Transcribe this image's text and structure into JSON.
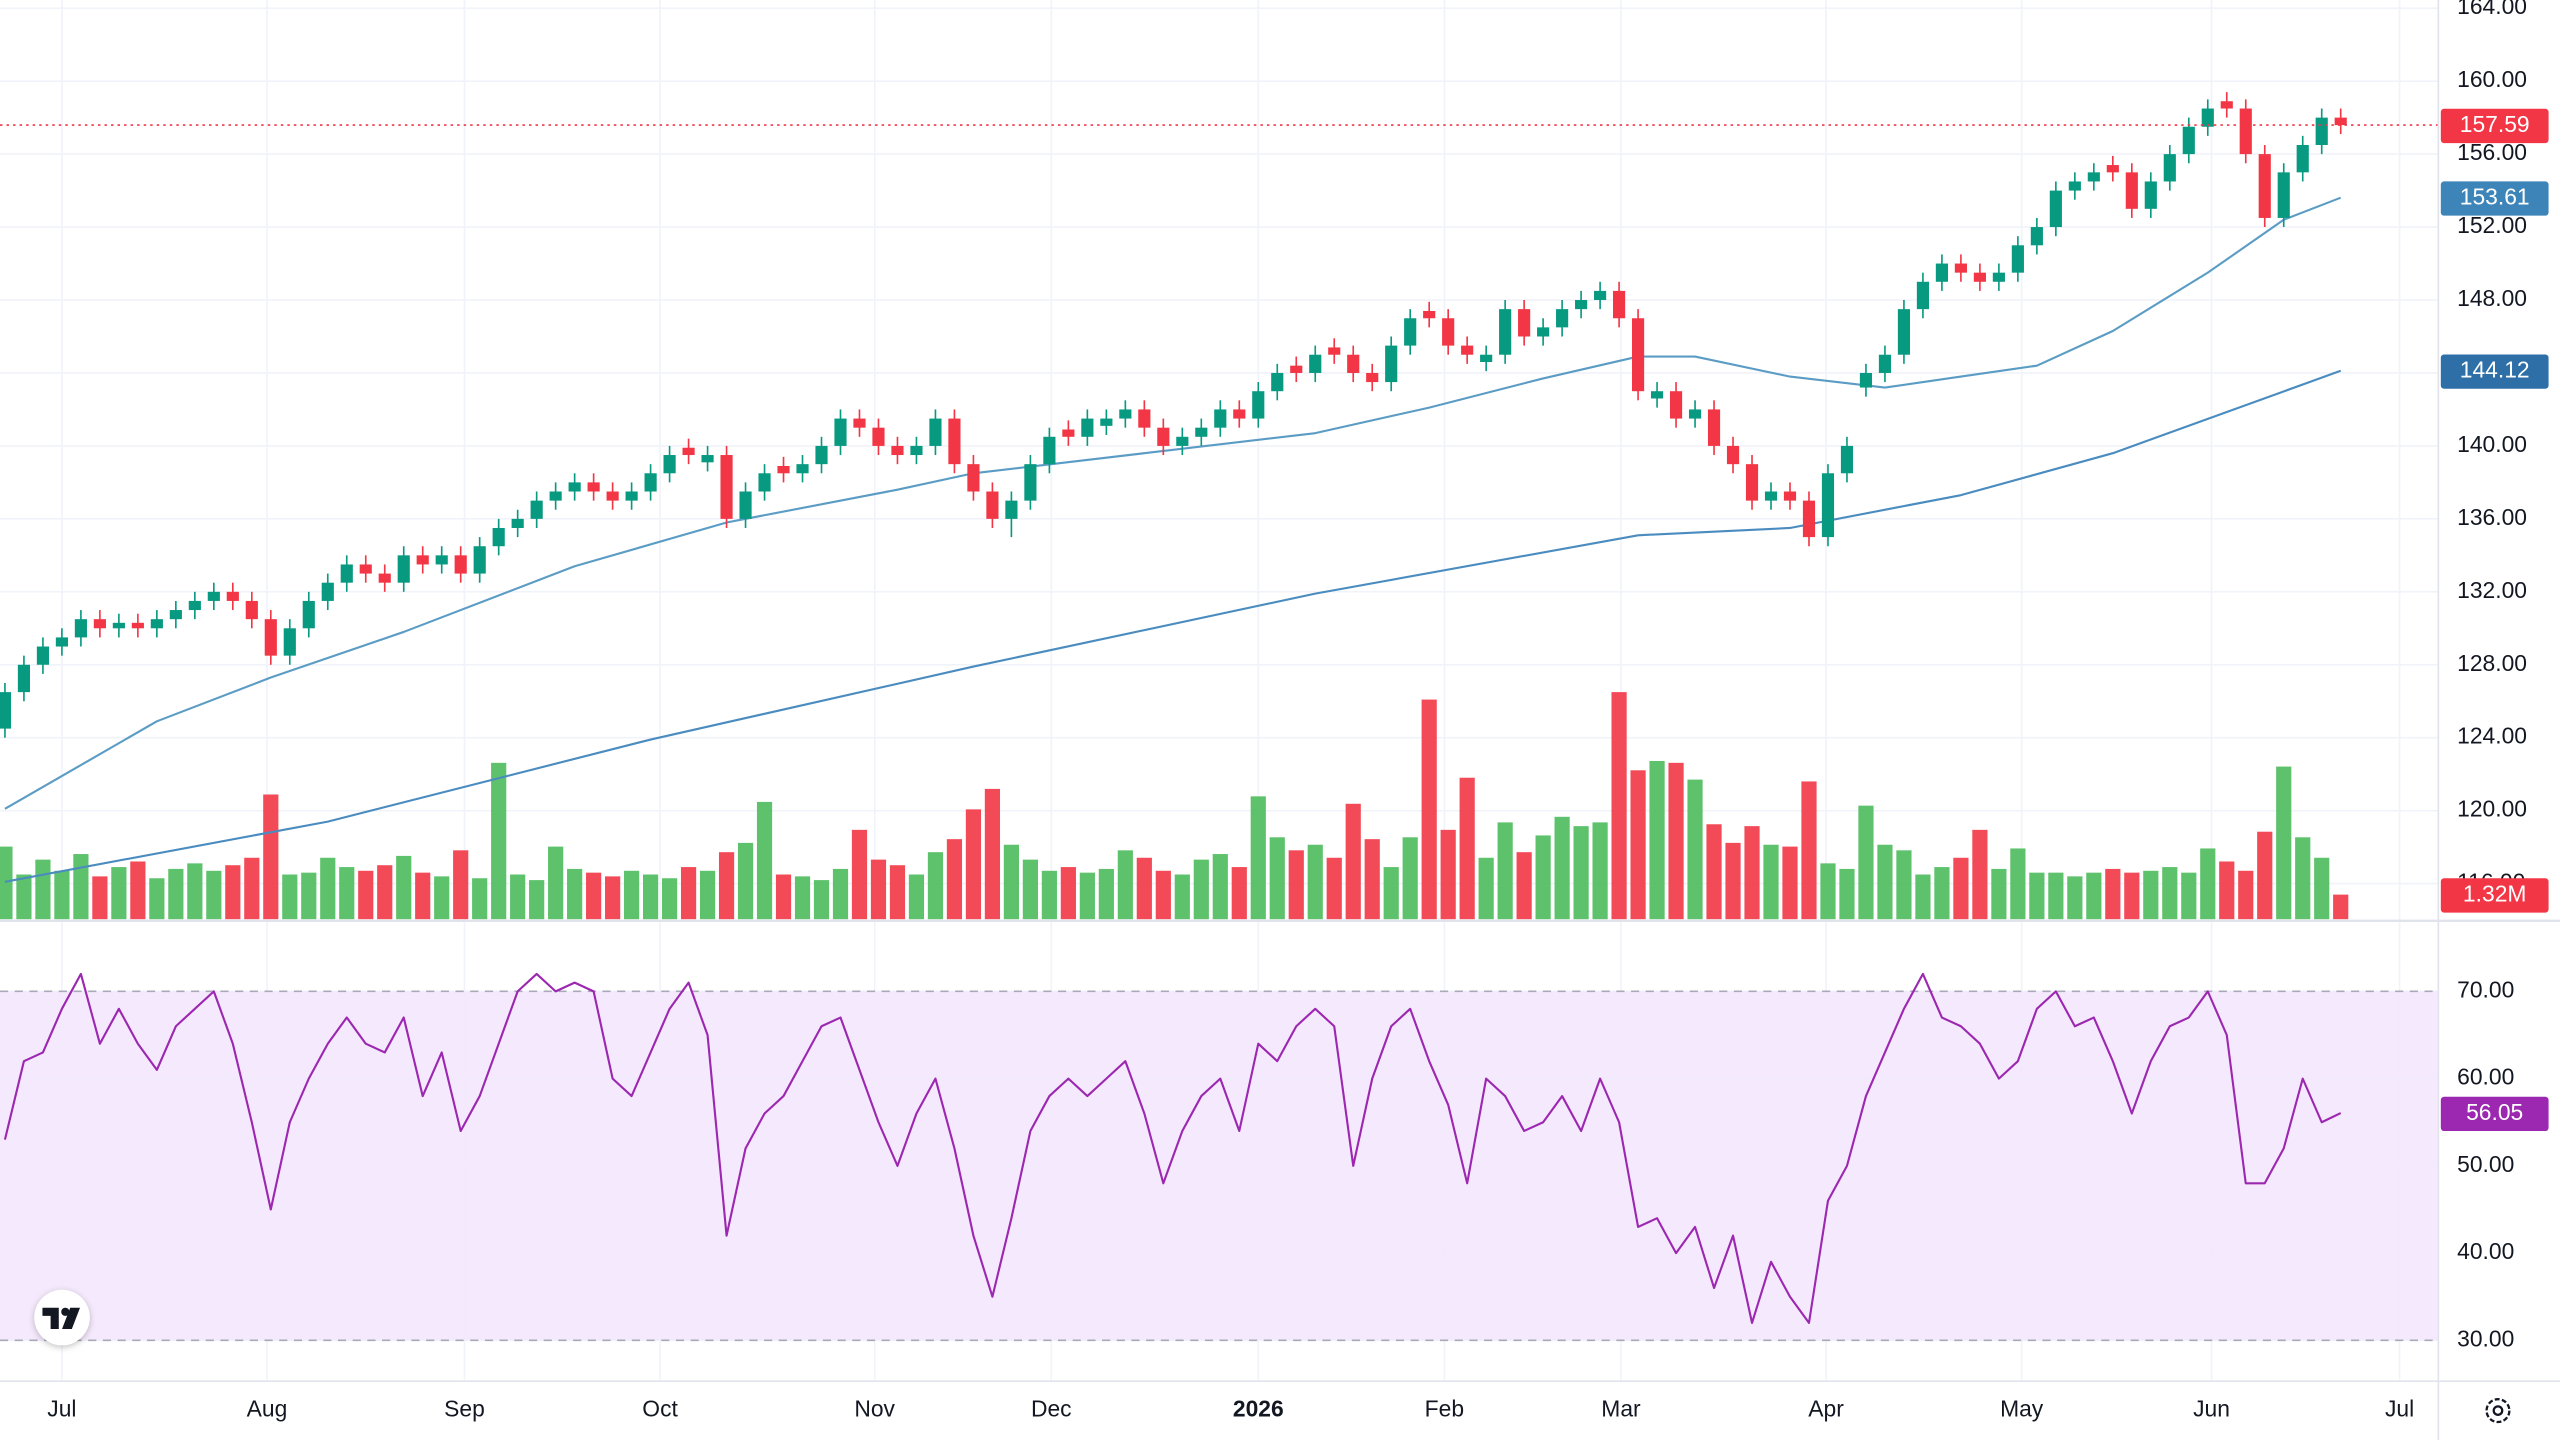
{
  "chart_data": {
    "type": "candlestick",
    "xlim": [
      -0.26,
      128.1
    ],
    "xticks": [
      {
        "value": 3.0,
        "label": "Jul"
      },
      {
        "value": 13.8,
        "label": "Aug"
      },
      {
        "value": 24.2,
        "label": "Sep"
      },
      {
        "value": 34.5,
        "label": "Oct"
      },
      {
        "value": 45.8,
        "label": "Nov"
      },
      {
        "value": 55.1,
        "label": "Dec"
      },
      {
        "value": 66.0,
        "label": "2026"
      },
      {
        "value": 75.8,
        "label": "Feb"
      },
      {
        "value": 85.1,
        "label": "Mar"
      },
      {
        "value": 95.9,
        "label": "Apr"
      },
      {
        "value": 106.2,
        "label": "May"
      },
      {
        "value": 116.2,
        "label": "Jun"
      },
      {
        "value": 126.1,
        "label": "Jul"
      }
    ],
    "ylim": [
      114.05,
      164.45
    ],
    "yticks": [
      {
        "value": 116,
        "label": "116.00"
      },
      {
        "value": 120,
        "label": "120.00"
      },
      {
        "value": 124,
        "label": "124.00"
      },
      {
        "value": 128,
        "label": "128.00"
      },
      {
        "value": 132,
        "label": "132.00"
      },
      {
        "value": 136,
        "label": "136.00"
      },
      {
        "value": 140,
        "label": "140.00"
      },
      {
        "value": 144,
        "label": "144.00"
      },
      {
        "value": 148,
        "label": "148.00"
      },
      {
        "value": 152,
        "label": "152.00"
      },
      {
        "value": 156,
        "label": "156.00"
      },
      {
        "value": 160,
        "label": "160.00"
      },
      {
        "value": 164,
        "label": "164.00"
      }
    ],
    "grid": true,
    "up_color": "#089981",
    "down_color": "#f23645",
    "open": [
      124.5,
      126.5,
      128,
      129,
      129.5,
      130.5,
      130,
      130.3,
      130,
      130.5,
      131,
      131.5,
      132,
      131.5,
      130.5,
      128.5,
      130,
      131.5,
      132.5,
      133.5,
      133,
      132.5,
      134,
      133.5,
      134,
      133,
      134.5,
      135.5,
      136,
      137,
      137.5,
      138,
      137.5,
      137,
      137.5,
      138.5,
      139.9,
      139.1,
      139.5,
      136,
      137.5,
      138.9,
      138.5,
      139,
      140,
      141.5,
      141,
      140,
      139.5,
      140,
      141.5,
      139,
      137.5,
      136,
      137,
      139,
      140.9,
      140.5,
      141.1,
      141.5,
      142,
      141,
      140,
      140.5,
      141,
      142,
      141.5,
      143,
      144.4,
      144,
      145.4,
      145,
      144,
      143.5,
      145.5,
      147.4,
      147,
      145.5,
      144.6,
      145,
      147.5,
      146,
      146.5,
      147.5,
      148,
      148.5,
      147,
      142.6,
      143,
      141.5,
      142,
      140,
      139,
      137,
      137.5,
      137,
      135,
      138.5,
      143.2,
      144,
      145,
      147.5,
      149,
      150,
      149.5,
      149,
      149.5,
      151,
      152,
      154,
      154.5,
      155.4,
      155,
      153,
      154.5,
      156,
      157.5,
      158.9,
      158.5,
      156,
      152.5,
      155,
      156.5,
      158
    ],
    "high": [
      127,
      128.5,
      129.5,
      130,
      131,
      131,
      130.8,
      130.8,
      131,
      131.5,
      132,
      132.5,
      132.5,
      132,
      131,
      130.5,
      132,
      133,
      134,
      134,
      133.5,
      134.5,
      134.5,
      134.5,
      134.5,
      135,
      136,
      136.5,
      137.5,
      138,
      138.5,
      138.5,
      138,
      138,
      139,
      140,
      140.4,
      140,
      140,
      138,
      139,
      139.4,
      139.5,
      140.5,
      142,
      142,
      141.5,
      140.5,
      140.5,
      142,
      142,
      139.5,
      138,
      137.5,
      139.5,
      141,
      141.4,
      142,
      142,
      142.5,
      142.5,
      141.5,
      141,
      141.5,
      142.5,
      142.5,
      143.5,
      144.5,
      144.9,
      145.5,
      145.9,
      145.5,
      144.5,
      146,
      147.5,
      147.9,
      147.5,
      146,
      145.5,
      148,
      148,
      147,
      148,
      148.5,
      149,
      149,
      147.5,
      143.5,
      143.5,
      142.5,
      142.5,
      140.5,
      139.5,
      138,
      138,
      137.5,
      139,
      140.5,
      144.5,
      145.5,
      148,
      149.5,
      150.5,
      150.5,
      150,
      150,
      151.5,
      152.5,
      154.5,
      155,
      155.5,
      155.9,
      155.5,
      155,
      156.5,
      158,
      159,
      159.4,
      159,
      156.5,
      155.5,
      157,
      158.5,
      158.5
    ],
    "low": [
      124,
      126,
      127.5,
      128.5,
      129,
      129.5,
      129.5,
      129.5,
      129.5,
      130,
      130.5,
      131,
      131,
      130,
      128,
      128,
      129.5,
      131,
      132,
      132.5,
      132,
      132,
      133,
      133,
      132.5,
      132.5,
      134,
      135,
      135.5,
      136.5,
      137,
      137,
      136.5,
      136.5,
      137,
      138,
      139,
      138.6,
      135.5,
      135.5,
      137,
      138,
      138,
      138.5,
      139.5,
      140.5,
      139.5,
      139,
      139,
      139.5,
      138.5,
      137,
      135.5,
      135,
      136.5,
      138.5,
      140,
      140,
      140.6,
      141,
      140.5,
      139.5,
      139.5,
      140,
      140.5,
      141,
      141,
      142.5,
      143.5,
      143.5,
      144.5,
      143.5,
      143,
      143,
      145,
      146.5,
      145,
      144.5,
      144.1,
      144.5,
      145.5,
      145.5,
      146,
      147,
      147.5,
      146.5,
      142.5,
      142.1,
      141,
      141,
      139.5,
      138.5,
      136.5,
      136.5,
      136.5,
      134.5,
      134.5,
      138,
      142.7,
      143.5,
      144.5,
      147,
      148.5,
      149,
      148.5,
      148.5,
      149,
      150.5,
      151.5,
      153.5,
      154,
      154.5,
      152.5,
      152.5,
      154,
      155.5,
      157,
      158,
      155.5,
      152,
      152,
      154.5,
      156,
      157.1
    ],
    "close": [
      126.5,
      128,
      129,
      129.5,
      130.5,
      130,
      130.3,
      130,
      130.5,
      131,
      131.5,
      132,
      131.5,
      130.5,
      128.5,
      130,
      131.5,
      132.5,
      133.5,
      133,
      132.5,
      134,
      133.5,
      134,
      133,
      134.5,
      135.5,
      136,
      137,
      137.5,
      138,
      137.5,
      137,
      137.5,
      138.5,
      139.5,
      139.5,
      139.5,
      136,
      137.5,
      138.5,
      138.5,
      139,
      140,
      141.5,
      141,
      140,
      139.5,
      140,
      141.5,
      139,
      137.5,
      136,
      137,
      139,
      140.5,
      140.5,
      141.5,
      141.5,
      142,
      141,
      140,
      140.5,
      141,
      142,
      141.5,
      143,
      144,
      144,
      145,
      145,
      144,
      143.5,
      145.5,
      147,
      147,
      145.5,
      145,
      145,
      147.5,
      146,
      146.5,
      147.5,
      148,
      148.5,
      147,
      143,
      143,
      141.5,
      142,
      140,
      139,
      137,
      137.5,
      137,
      135,
      138.5,
      140,
      144,
      145,
      147.5,
      149,
      150,
      149.5,
      149,
      149.5,
      151,
      152,
      154,
      154.5,
      155,
      155,
      153,
      154.5,
      156,
      157.5,
      158.5,
      158.5,
      156,
      152.5,
      155,
      156.5,
      158,
      157.59
    ],
    "last_price_line": true,
    "moving_averages": [
      {
        "color": "#5b9cc5",
        "x": [
          0,
          8,
          14,
          21,
          30,
          38,
          47,
          51,
          60,
          69,
          75,
          81,
          86,
          89,
          94,
          99,
          103,
          107,
          111,
          116,
          120,
          123
        ],
        "values": [
          120.1,
          124.9,
          127.3,
          129.8,
          133.4,
          135.8,
          137.6,
          138.5,
          139.6,
          140.7,
          142.1,
          143.7,
          144.9,
          144.9,
          143.8,
          143.2,
          143.8,
          144.4,
          146.3,
          149.5,
          152.4,
          153.61
        ],
        "badge_color": "#3d85b8"
      },
      {
        "color": "#4a8cbf",
        "x": [
          0,
          17,
          34,
          51,
          69,
          86,
          94,
          103,
          111,
          123
        ],
        "values": [
          116.1,
          119.4,
          123.9,
          127.9,
          131.9,
          135.1,
          135.5,
          137.3,
          139.6,
          144.12
        ],
        "badge_color": "#2e6fa8"
      }
    ],
    "volume": {
      "lim": [
        0,
        15000000
      ],
      "up_color": "#4cbb5c",
      "down_color": "#f23645",
      "values": [
        3900000,
        2400000,
        3200000,
        2600000,
        3500000,
        2300000,
        2800000,
        3100000,
        2200000,
        2700000,
        3000000,
        2600000,
        2900000,
        3300000,
        6700000,
        2400000,
        2500000,
        3300000,
        2800000,
        2600000,
        2900000,
        3400000,
        2500000,
        2300000,
        3700000,
        2200000,
        8400000,
        2400000,
        2100000,
        3900000,
        2700000,
        2500000,
        2300000,
        2600000,
        2400000,
        2200000,
        2800000,
        2600000,
        3600000,
        4100000,
        6300000,
        2400000,
        2300000,
        2100000,
        2700000,
        4800000,
        3200000,
        2900000,
        2400000,
        3600000,
        4300000,
        5900000,
        7000000,
        4000000,
        3200000,
        2600000,
        2800000,
        2500000,
        2700000,
        3700000,
        3300000,
        2600000,
        2400000,
        3200000,
        3500000,
        2800000,
        6600000,
        4400000,
        3700000,
        4000000,
        3300000,
        6200000,
        4300000,
        2800000,
        4400000,
        11800000,
        4800000,
        7600000,
        3300000,
        5200000,
        3600000,
        4500000,
        5500000,
        5000000,
        5200000,
        12200000,
        8000000,
        8500000,
        8400000,
        7500000,
        5100000,
        4100000,
        5000000,
        4000000,
        3900000,
        7400000,
        3000000,
        2700000,
        6100000,
        4000000,
        3700000,
        2400000,
        2800000,
        3300000,
        4800000,
        2700000,
        3800000,
        2500000,
        2500000,
        2300000,
        2500000,
        2700000,
        2500000,
        2600000,
        2800000,
        2500000,
        3800000,
        3100000,
        2600000,
        4700000,
        8200000,
        4400000,
        3300000,
        1320000
      ],
      "badge": {
        "value": 1320000,
        "label": "1.32M"
      }
    },
    "rsi": {
      "color": "#9c27b0",
      "band_fill": "#f3e6fd",
      "ylim": [
        25.5,
        77.9
      ],
      "yticks": [
        {
          "value": 30,
          "label": "30.00"
        },
        {
          "value": 40,
          "label": "40.00"
        },
        {
          "value": 50,
          "label": "50.00"
        },
        {
          "value": 60,
          "label": "60.00"
        },
        {
          "value": 70,
          "label": "70.00"
        }
      ],
      "band": [
        30,
        70
      ],
      "values": [
        53,
        62,
        63,
        68,
        72,
        64,
        68,
        64,
        61,
        66,
        68,
        70,
        64,
        55,
        45,
        55,
        60,
        64,
        67,
        64,
        63,
        67,
        58,
        63,
        54,
        58,
        64,
        70,
        72,
        70,
        71,
        70,
        60,
        58,
        63,
        68,
        71,
        65,
        42,
        52,
        56,
        58,
        62,
        66,
        67,
        61,
        55,
        50,
        56,
        60,
        52,
        42,
        35,
        44,
        54,
        58,
        60,
        58,
        60,
        62,
        56,
        48,
        54,
        58,
        60,
        54,
        64,
        62,
        66,
        68,
        66,
        50,
        60,
        66,
        68,
        62,
        57,
        48,
        60,
        58,
        54,
        55,
        58,
        54,
        60,
        55,
        43,
        44,
        40,
        43,
        36,
        42,
        32,
        39,
        35,
        32,
        46,
        50,
        58,
        63,
        68,
        72,
        67,
        66,
        64,
        60,
        62,
        68,
        70,
        66,
        67,
        62,
        56,
        62,
        66,
        67,
        70,
        65,
        48,
        48,
        52,
        60,
        55,
        56.05
      ]
    }
  }
}
